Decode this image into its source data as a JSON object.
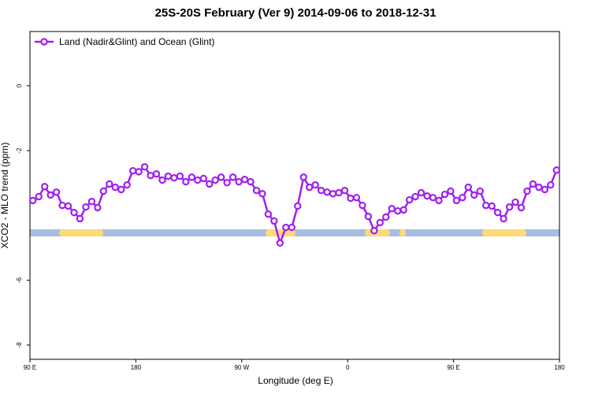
{
  "chart_data": {
    "type": "line",
    "title": "25S-20S February (Ver 9)   2014-09-06 to 2018-12-31",
    "xlabel": "Longitude (deg E)",
    "ylabel": "XCO2 - MLO trend (ppm)",
    "xlim": [
      90,
      540
    ],
    "ylim": [
      1.675,
      -8.44
    ],
    "xticks": [
      {
        "value": 90,
        "label": "90 E"
      },
      180,
      {
        "value": 270,
        "label": "90 W"
      },
      {
        "value": 360,
        "label": "0"
      },
      {
        "value": 450,
        "label": "90 E"
      },
      {
        "value": 540,
        "label": "180"
      }
    ],
    "yticks": [
      0,
      -2,
      -6,
      -8
    ],
    "legend": "top-left",
    "x": [
      92.5,
      97.5,
      102.5,
      107.5,
      112.5,
      117.5,
      122.5,
      127.5,
      132.5,
      137.5,
      142.5,
      147.5,
      152.5,
      157.5,
      162.5,
      167.5,
      172.5,
      177.5,
      182.5,
      187.5,
      192.5,
      197.5,
      202.5,
      207.5,
      212.5,
      217.5,
      222.5,
      227.5,
      232.5,
      237.5,
      242.5,
      247.5,
      252.5,
      257.5,
      262.5,
      267.5,
      272.5,
      277.5,
      282.5,
      287.5,
      292.5,
      297.5,
      302.5,
      307.5,
      312.5,
      317.5,
      322.5,
      327.5,
      332.5,
      337.5,
      342.5,
      347.5,
      352.5,
      357.5,
      362.5,
      367.5,
      372.5,
      377.5,
      382.5,
      387.5,
      392.5,
      397.5,
      402.5,
      407.5,
      412.5,
      417.5,
      422.5,
      427.5,
      432.5,
      437.5,
      442.5,
      447.5,
      452.5,
      457.5,
      462.5,
      467.5,
      472.5,
      477.5,
      482.5,
      487.5,
      492.5,
      497.5,
      502.5,
      507.5,
      512.5,
      517.5,
      522.5,
      527.5,
      532.5,
      537.5
    ],
    "series": [
      {
        "name": "Land (Nadir&Glint) and Ocean (Glint)",
        "color": "#a020f0",
        "values": [
          -3.54,
          -3.42,
          -3.11,
          -3.37,
          -3.28,
          -3.69,
          -3.71,
          -3.91,
          -4.1,
          -3.74,
          -3.57,
          -3.76,
          -3.25,
          -3.03,
          -3.13,
          -3.2,
          -3.06,
          -2.62,
          -2.65,
          -2.5,
          -2.77,
          -2.72,
          -2.91,
          -2.79,
          -2.84,
          -2.79,
          -2.96,
          -2.82,
          -2.91,
          -2.86,
          -3.03,
          -2.91,
          -2.82,
          -2.99,
          -2.82,
          -2.96,
          -2.89,
          -2.96,
          -3.23,
          -3.33,
          -3.96,
          -4.17,
          -4.85,
          -4.37,
          -4.37,
          -3.71,
          -2.82,
          -3.13,
          -3.06,
          -3.23,
          -3.28,
          -3.33,
          -3.3,
          -3.23,
          -3.47,
          -3.45,
          -3.69,
          -4.03,
          -4.47,
          -4.22,
          -4.05,
          -3.79,
          -3.86,
          -3.83,
          -3.52,
          -3.42,
          -3.3,
          -3.4,
          -3.45,
          -3.54,
          -3.35,
          -3.25,
          -3.54,
          -3.45,
          -3.13,
          -3.37,
          -3.25,
          -3.69,
          -3.71,
          -3.91,
          -4.1,
          -3.74,
          -3.59,
          -3.76,
          -3.25,
          -3.03,
          -3.13,
          -3.2,
          -3.06,
          -2.6
        ]
      }
    ]
  }
}
